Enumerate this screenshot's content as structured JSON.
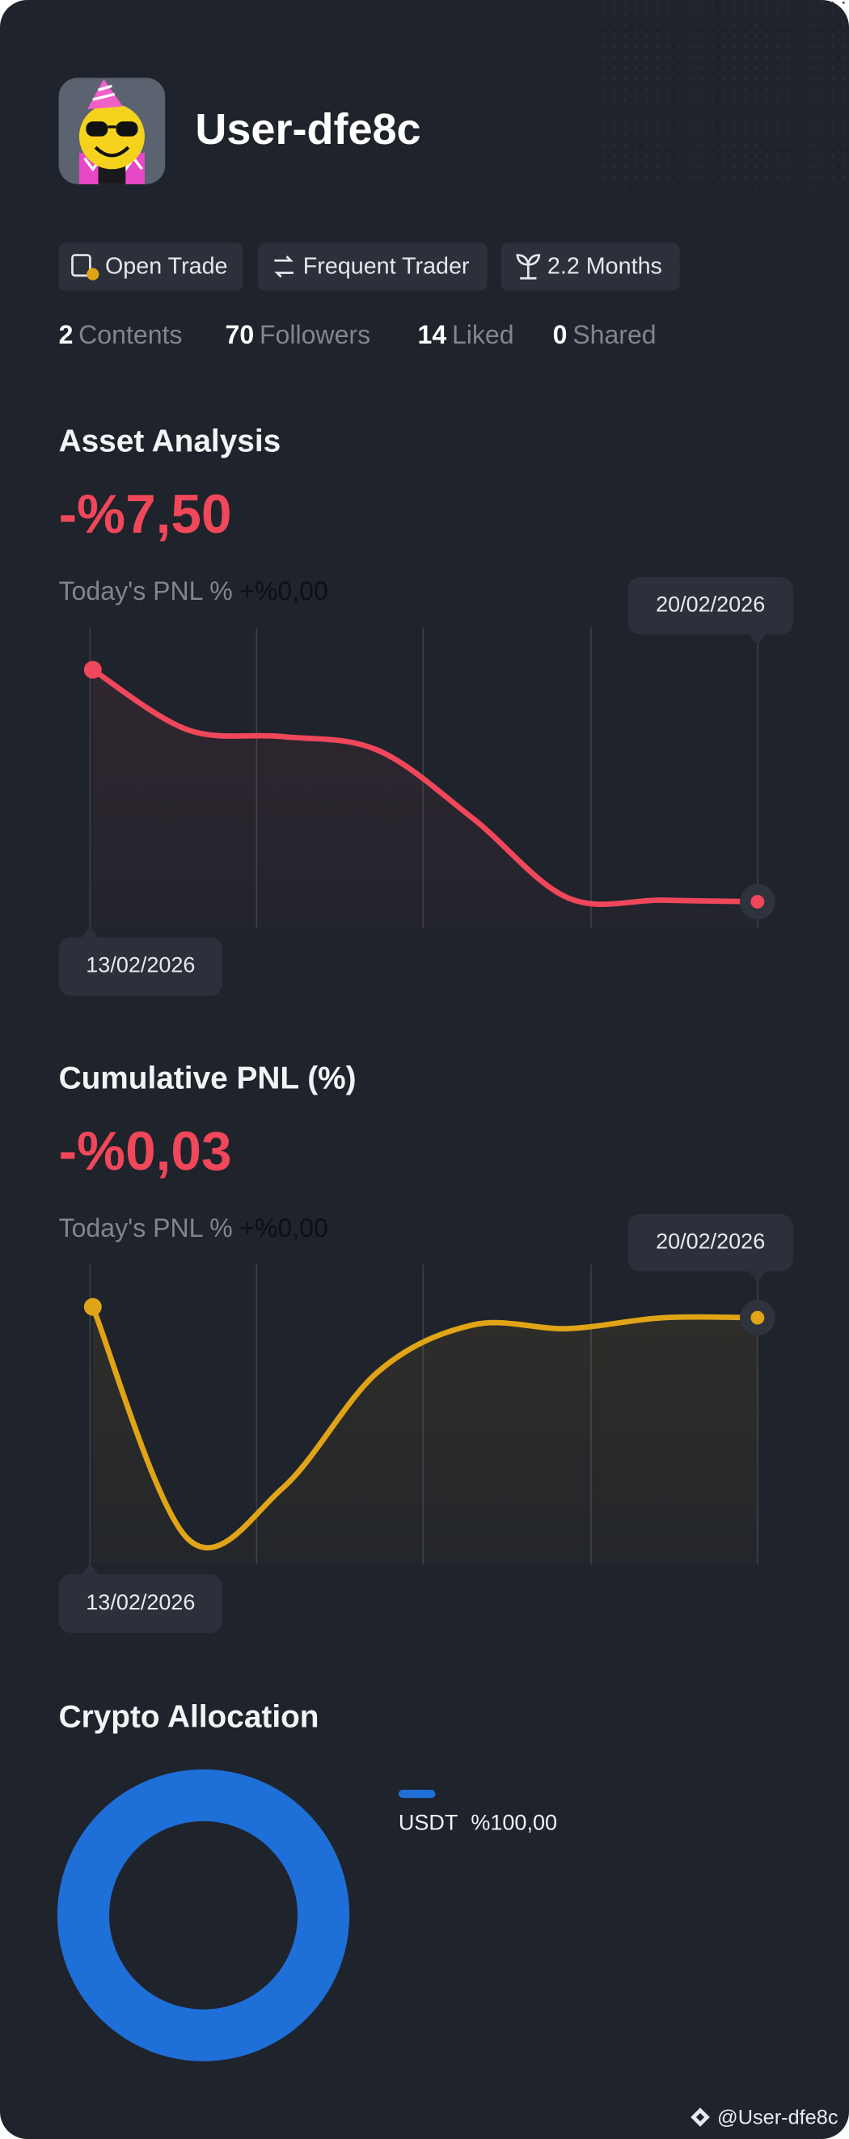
{
  "profile": {
    "username": "User-dfe8c",
    "badges": [
      "Open Trade",
      "Frequent Trader",
      "2.2 Months"
    ],
    "stats": [
      {
        "value": 2,
        "label": "Contents"
      },
      {
        "value": 70,
        "label": "Followers"
      },
      {
        "value": 14,
        "label": "Liked"
      },
      {
        "value": 0,
        "label": "Shared"
      }
    ]
  },
  "chart_data": [
    {
      "type": "line",
      "title": "Asset Analysis",
      "headline": "-%7,50",
      "subtitle_label": "Today's PNL %",
      "subtitle_value": "+%0,00",
      "categories": [
        "13/02/2026",
        null,
        null,
        null,
        null,
        null,
        null,
        "20/02/2026"
      ],
      "values": [
        0,
        -1.94,
        -2.16,
        -2.6,
        -4.8,
        -7.37,
        -7.45,
        -7.5
      ],
      "color": "#f0475a"
    },
    {
      "type": "line",
      "title": "Cumulative PNL (%)",
      "headline": "-%0,03",
      "subtitle_label": "Today's PNL %",
      "subtitle_value": "+%0,00",
      "categories": [
        "13/02/2026",
        null,
        null,
        null,
        null,
        null,
        null,
        "20/02/2026"
      ],
      "values": [
        0,
        -0.64,
        -0.5,
        -0.18,
        -0.05,
        -0.06,
        -0.03,
        -0.03
      ],
      "color": "#e0a416"
    },
    {
      "type": "donut",
      "title": "Crypto Allocation",
      "categories": [
        "USDT"
      ],
      "values": [
        100
      ],
      "value_labels": [
        "%100,00"
      ],
      "colors": [
        "#1f6fd8"
      ]
    }
  ],
  "footer": "@User-dfe8c"
}
